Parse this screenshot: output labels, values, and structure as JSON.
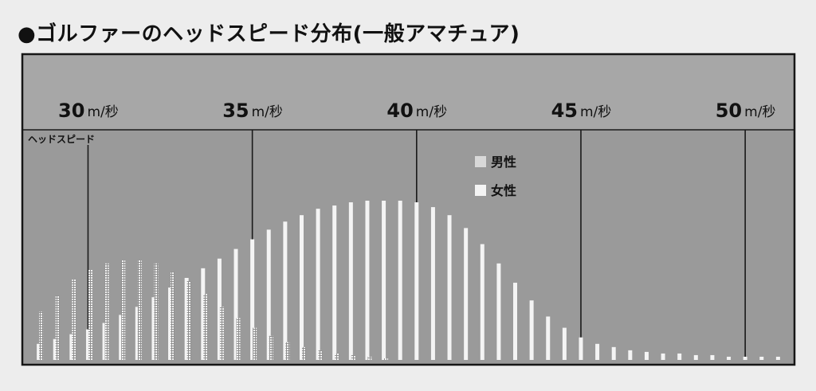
{
  "title": "●ゴルファーのヘッドスピード分布(一般アマチュア)",
  "colors": {
    "panel": "#9a9a9a",
    "header_band": "#a7a7a7",
    "bar": "#f4f4f4",
    "guide_line": "#1a1a1a",
    "frame": "#161616"
  },
  "chart_data": {
    "type": "bar",
    "xlabel": "ヘッドスピード",
    "unit": "m/秒",
    "x_ticks": [
      {
        "value": 30,
        "label": "30",
        "unit": "m/秒"
      },
      {
        "value": 35,
        "label": "35",
        "unit": "m/秒"
      },
      {
        "value": 40,
        "label": "40",
        "unit": "m/秒"
      },
      {
        "value": 45,
        "label": "45",
        "unit": "m/秒"
      },
      {
        "value": 50,
        "label": "50",
        "unit": "m/秒"
      }
    ],
    "xlim": [
      28,
      51.5
    ],
    "ylim": [
      0,
      100
    ],
    "legend": {
      "position": "top-center",
      "entries": [
        "男性",
        "女性"
      ]
    },
    "series": [
      {
        "name": "男性",
        "pattern": "solid",
        "x": [
          28.5,
          29,
          29.5,
          30,
          30.5,
          31,
          31.5,
          32,
          32.5,
          33,
          33.5,
          34,
          34.5,
          35,
          35.5,
          36,
          36.5,
          37,
          37.5,
          38,
          38.5,
          39,
          39.5,
          40,
          40.5,
          41,
          41.5,
          42,
          42.5,
          43,
          43.5,
          44,
          44.5,
          45,
          45.5,
          46,
          46.5,
          47,
          47.5,
          48,
          48.5,
          49,
          49.5,
          50,
          50.5,
          51
        ],
        "values": [
          10,
          13,
          16,
          19,
          23,
          28,
          33,
          39,
          45,
          51,
          57,
          63,
          69,
          75,
          81,
          86,
          90,
          94,
          96,
          98,
          99,
          99,
          99,
          98,
          95,
          90,
          82,
          72,
          60,
          48,
          37,
          27,
          20,
          14,
          10,
          8,
          6,
          5,
          4,
          4,
          3,
          3,
          2,
          2,
          2,
          2
        ]
      },
      {
        "name": "女性",
        "pattern": "dotted",
        "x": [
          28.5,
          29,
          29.5,
          30,
          30.5,
          31,
          31.5,
          32,
          32.5,
          33,
          33.5,
          34,
          34.5,
          35,
          35.5,
          36,
          36.5,
          37,
          37.5,
          38,
          38.5,
          39
        ],
        "values": [
          30,
          40,
          50,
          56,
          60,
          62,
          62,
          60,
          55,
          49,
          41,
          33,
          26,
          20,
          15,
          11,
          8,
          6,
          4,
          3,
          2,
          1
        ]
      }
    ]
  }
}
